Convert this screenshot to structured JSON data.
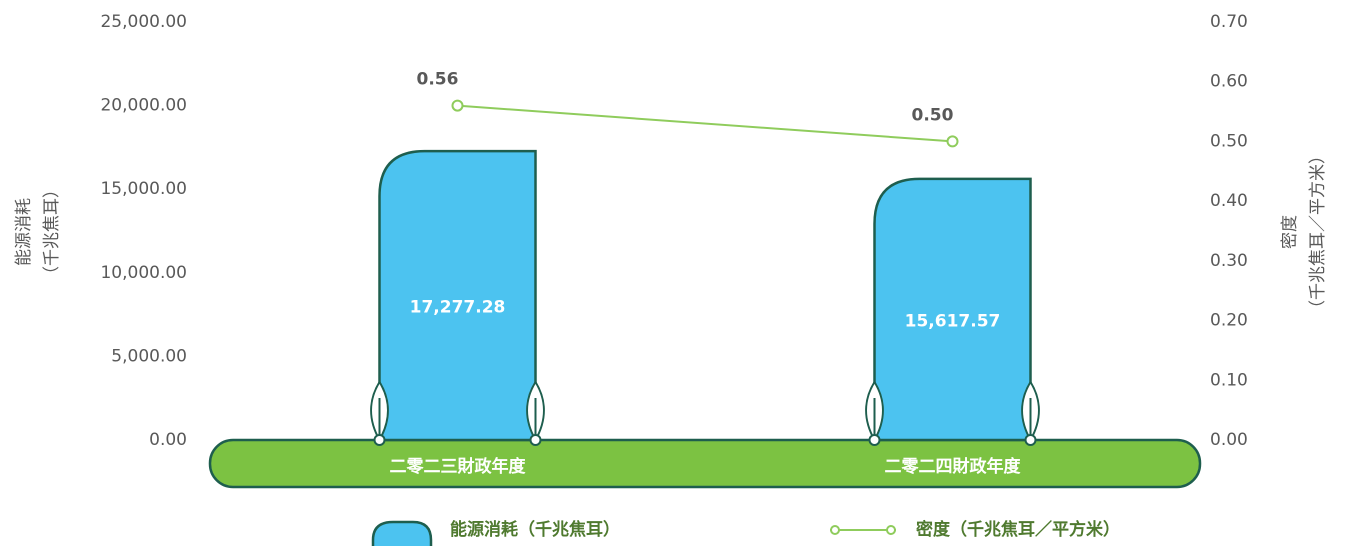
{
  "chart_data": {
    "type": "bar",
    "categories": [
      "二零二三財政年度",
      "二零二四財政年度"
    ],
    "series": [
      {
        "name": "能源消耗（千兆焦耳）",
        "type": "bar",
        "color": "#4cc3f0",
        "values": [
          17277.28,
          15617.57
        ],
        "value_labels": [
          "17,277.28",
          "15,617.57"
        ]
      },
      {
        "name": "密度（千兆焦耳／平方米）",
        "type": "line",
        "axis": "y2",
        "color": "#8fcc5c",
        "values": [
          0.56,
          0.5
        ],
        "value_labels": [
          "0.56",
          "0.50"
        ]
      }
    ],
    "y_label": [
      "能源消耗",
      "（千兆焦耳）"
    ],
    "y2_label": [
      "密度",
      "（千兆焦耳／平方米）"
    ],
    "ylim": [
      0,
      25000
    ],
    "yticks": [
      {
        "value": 0,
        "label": "0.00"
      },
      {
        "value": 5000,
        "label": "5,000.00"
      },
      {
        "value": 10000,
        "label": "10,000.00"
      },
      {
        "value": 15000,
        "label": "15,000.00"
      },
      {
        "value": 20000,
        "label": "20,000.00"
      },
      {
        "value": 25000,
        "label": "25,000.00"
      }
    ],
    "y2lim": [
      0,
      0.7
    ],
    "y2ticks": [
      {
        "value": 0,
        "label": "0.00"
      },
      {
        "value": 0.1,
        "label": "0.10"
      },
      {
        "value": 0.2,
        "label": "0.20"
      },
      {
        "value": 0.3,
        "label": "0.30"
      },
      {
        "value": 0.4,
        "label": "0.40"
      },
      {
        "value": 0.5,
        "label": "0.50"
      },
      {
        "value": 0.6,
        "label": "0.60"
      },
      {
        "value": 0.7,
        "label": "0.70"
      }
    ],
    "legend": "bottom"
  }
}
